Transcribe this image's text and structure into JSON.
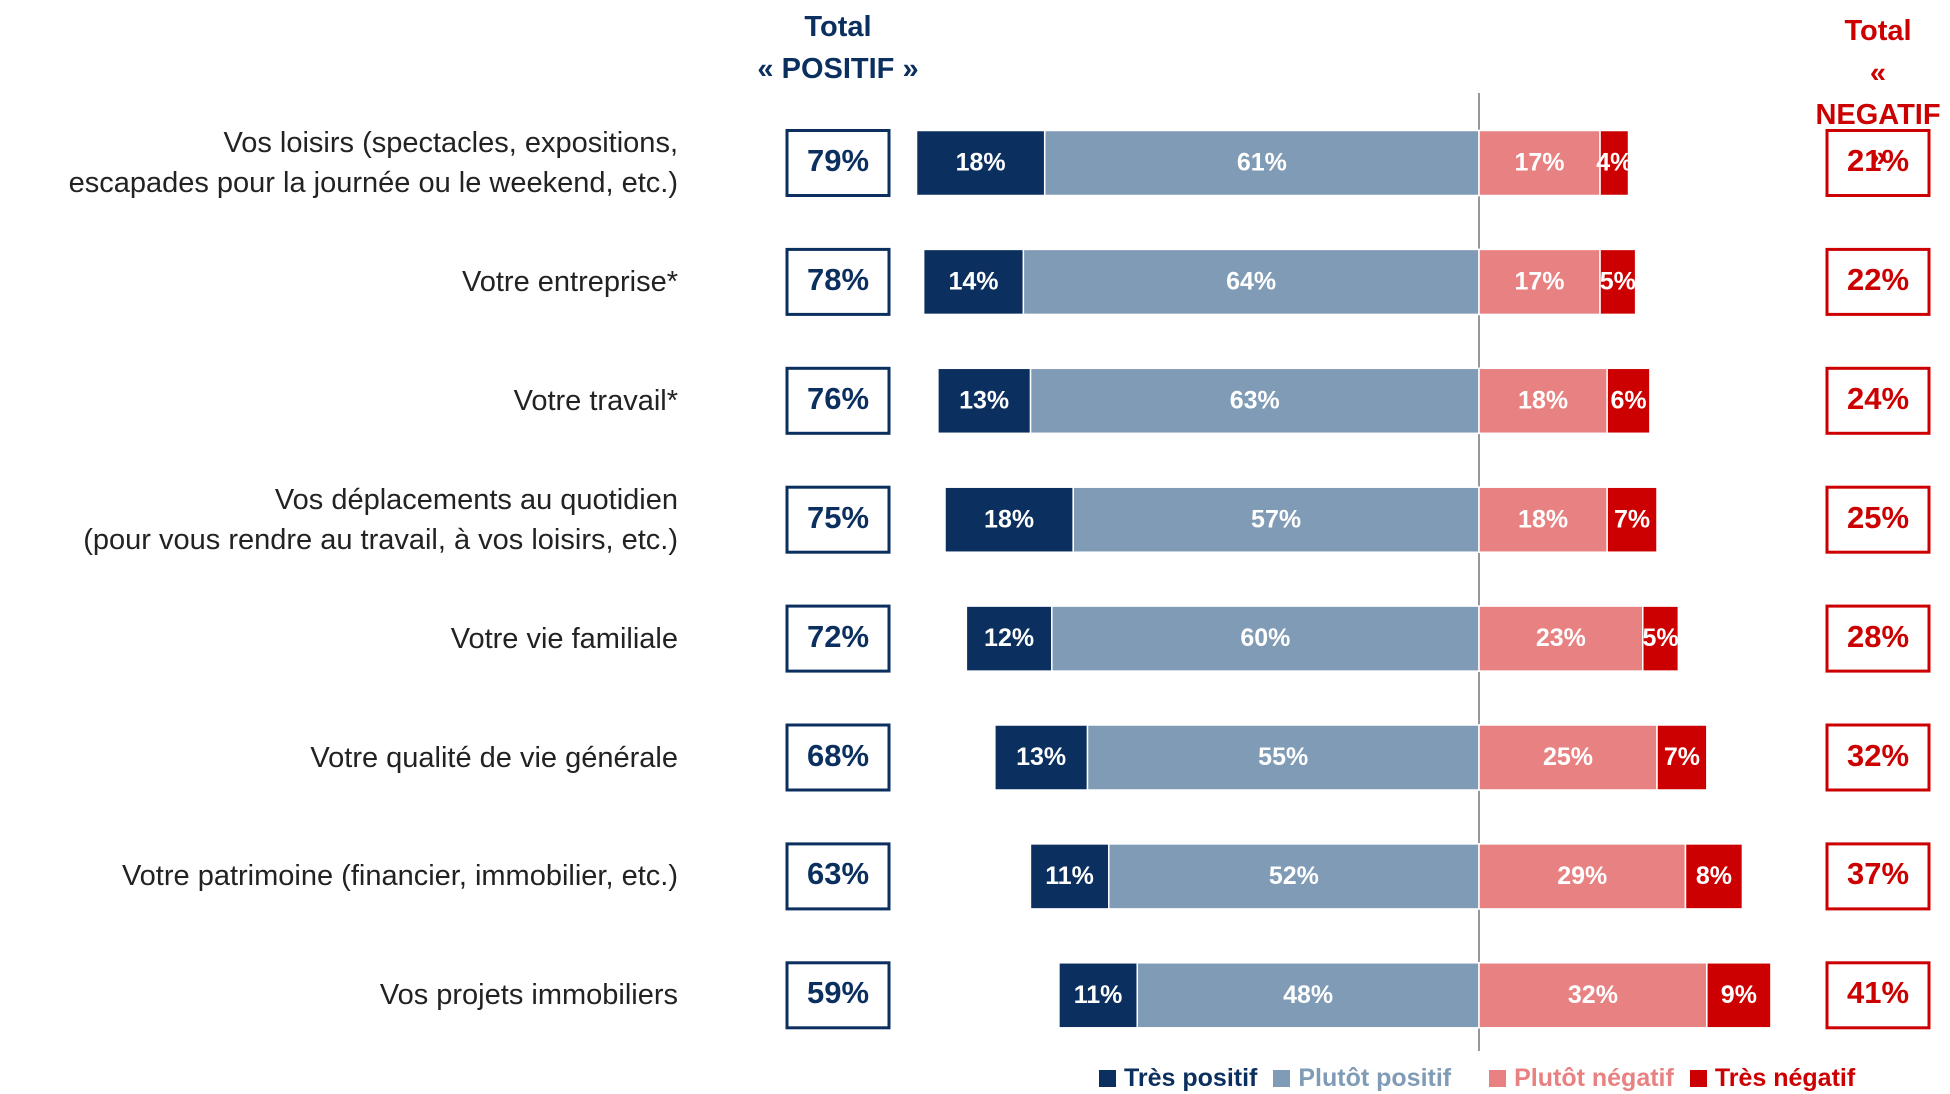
{
  "chart_data": {
    "type": "diverging-bar",
    "categories": [
      "Vos loisirs (spectacles, expositions,\nescapades pour la journée ou le weekend, etc.)",
      "Votre entreprise*",
      "Votre travail*",
      "Vos déplacements au quotidien\n(pour vous rendre au travail, à vos loisirs, etc.)",
      "Votre vie familiale",
      "Votre qualité de vie générale",
      "Votre patrimoine (financier, immobilier, etc.)",
      "Vos projets immobiliers"
    ],
    "series": [
      {
        "name": "Très positif",
        "color": "#0b2f5e",
        "side": "positive",
        "values": [
          18,
          14,
          13,
          18,
          12,
          13,
          11,
          11
        ],
        "value_labels": [
          "18%",
          "14%",
          "13%",
          "18%",
          "12%",
          "13%",
          "11%",
          "11%"
        ]
      },
      {
        "name": "Plutôt positif",
        "color": "#7f9bb5",
        "side": "positive",
        "values": [
          61,
          64,
          63,
          57,
          60,
          55,
          52,
          48
        ],
        "value_labels": [
          "61%",
          "64%",
          "63%",
          "57%",
          "60%",
          "55%",
          "52%",
          "48%"
        ]
      },
      {
        "name": "Plutôt négatif",
        "color": "#e88181",
        "side": "negative",
        "values": [
          17,
          17,
          18,
          18,
          23,
          25,
          29,
          32
        ],
        "value_labels": [
          "17%",
          "17%",
          "18%",
          "18%",
          "23%",
          "25%",
          "29%",
          "32%"
        ]
      },
      {
        "name": "Très négatif",
        "color": "#cc0000",
        "side": "negative",
        "values": [
          4,
          5,
          6,
          7,
          5,
          7,
          8,
          9
        ],
        "value_labels": [
          "4%",
          "5%",
          "6%",
          "7%",
          "5%",
          "7%",
          "8%",
          "9%"
        ]
      }
    ],
    "totals": [
      {
        "title": "Total\n« POSITIF »",
        "color": "#0b2f5e",
        "values": [
          79,
          78,
          76,
          75,
          72,
          68,
          63,
          59
        ],
        "value_labels": [
          "79%",
          "78%",
          "76%",
          "75%",
          "72%",
          "68%",
          "63%",
          "59%"
        ]
      },
      {
        "title": "Total\n« NEGATIF »",
        "color": "#cc0000",
        "values": [
          21,
          22,
          24,
          25,
          28,
          32,
          37,
          41
        ],
        "value_labels": [
          "21%",
          "22%",
          "24%",
          "25%",
          "28%",
          "32%",
          "37%",
          "41%"
        ]
      }
    ]
  }
}
